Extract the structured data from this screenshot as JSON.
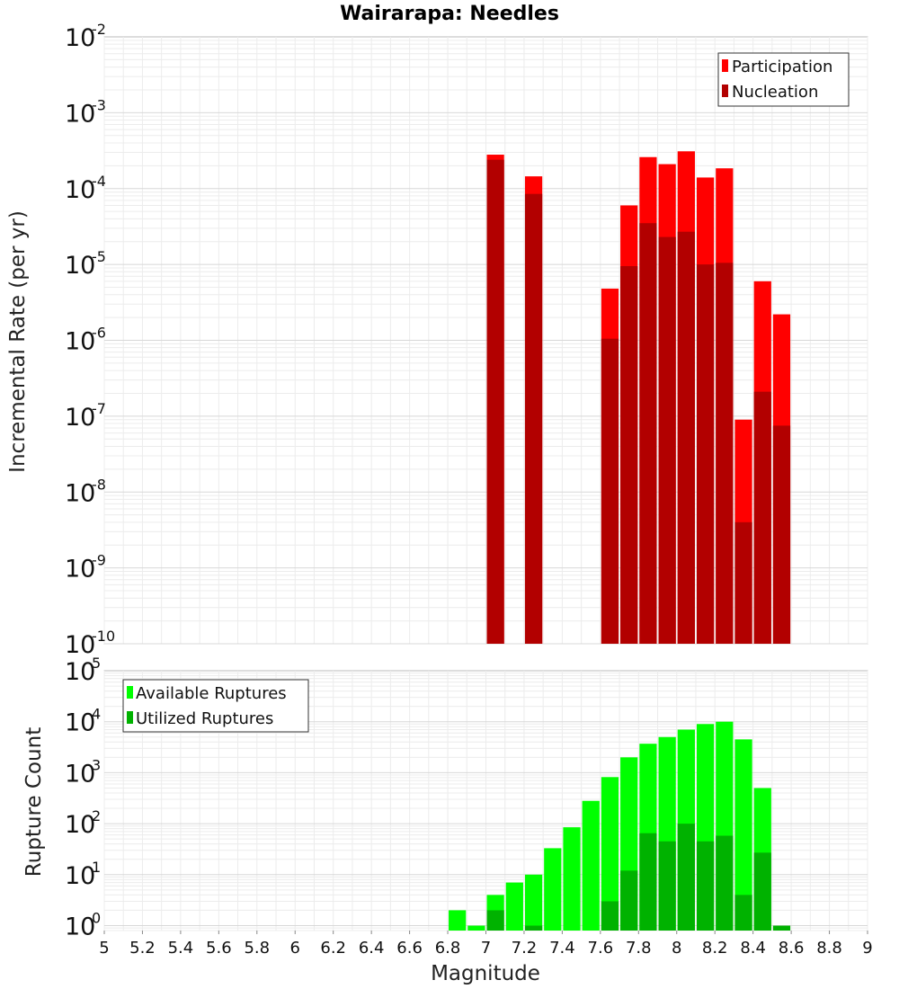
{
  "chart_data": [
    {
      "type": "bar",
      "title": "Wairarapa: Needles",
      "xlabel": "",
      "ylabel": "Incremental Rate (per yr)",
      "xlim": [
        5,
        9
      ],
      "ylim": [
        1e-10,
        0.01
      ],
      "yscale": "log",
      "grid": true,
      "legend_position": "top-right",
      "bin_width": 0.1,
      "x": [
        7.05,
        7.25,
        7.65,
        7.75,
        7.85,
        7.95,
        8.05,
        8.15,
        8.25,
        8.35,
        8.45,
        8.55
      ],
      "series": [
        {
          "name": "Participation",
          "color": "#ff0000",
          "values": [
            0.00028,
            0.000145,
            4.8e-06,
            6e-05,
            0.00026,
            0.00021,
            0.00031,
            0.00014,
            0.000185,
            9e-08,
            6e-06,
            2.2e-06
          ]
        },
        {
          "name": "Nucleation",
          "color": "#b20000",
          "values": [
            0.00024,
            8.5e-05,
            1.05e-06,
            9.5e-06,
            3.5e-05,
            2.3e-05,
            2.7e-05,
            1e-05,
            1.05e-05,
            4e-09,
            2.1e-07,
            7.5e-08
          ]
        }
      ],
      "yticks": [
        {
          "base": "10",
          "exp": "-10"
        },
        {
          "base": "10",
          "exp": "-9"
        },
        {
          "base": "10",
          "exp": "-8"
        },
        {
          "base": "10",
          "exp": "-7"
        },
        {
          "base": "10",
          "exp": "-6"
        },
        {
          "base": "10",
          "exp": "-5"
        },
        {
          "base": "10",
          "exp": "-4"
        },
        {
          "base": "10",
          "exp": "-3"
        },
        {
          "base": "10",
          "exp": "-2"
        }
      ]
    },
    {
      "type": "bar",
      "title": "",
      "xlabel": "Magnitude",
      "ylabel": "Rupture Count",
      "xlim": [
        5,
        9
      ],
      "ylim": [
        0.8,
        100000.0
      ],
      "yscale": "log",
      "grid": true,
      "legend_position": "top-left",
      "bin_width": 0.1,
      "x": [
        6.85,
        6.95,
        7.05,
        7.15,
        7.25,
        7.35,
        7.45,
        7.55,
        7.65,
        7.75,
        7.85,
        7.95,
        8.05,
        8.15,
        8.25,
        8.35,
        8.45,
        8.55
      ],
      "series": [
        {
          "name": "Available Ruptures",
          "color": "#00ff00",
          "values": [
            2,
            1,
            4,
            7,
            10,
            33,
            85,
            280,
            820,
            2000,
            3700,
            5000,
            7000,
            9000,
            10000,
            4500,
            500,
            null
          ]
        },
        {
          "name": "Utilized Ruptures",
          "color": "#00b200",
          "values": [
            null,
            null,
            2,
            null,
            1,
            null,
            null,
            null,
            3,
            12,
            65,
            45,
            100,
            45,
            58,
            4,
            27,
            1
          ]
        }
      ],
      "xticks": [
        "5",
        "5.2",
        "5.4",
        "5.6",
        "5.8",
        "6",
        "6.2",
        "6.4",
        "6.6",
        "6.8",
        "7",
        "7.2",
        "7.4",
        "7.6",
        "7.8",
        "8",
        "8.2",
        "8.4",
        "8.6",
        "8.8",
        "9"
      ],
      "yticks": [
        {
          "base": "10",
          "exp": "0"
        },
        {
          "base": "10",
          "exp": "1"
        },
        {
          "base": "10",
          "exp": "2"
        },
        {
          "base": "10",
          "exp": "3"
        },
        {
          "base": "10",
          "exp": "4"
        },
        {
          "base": "10",
          "exp": "5"
        }
      ]
    }
  ]
}
